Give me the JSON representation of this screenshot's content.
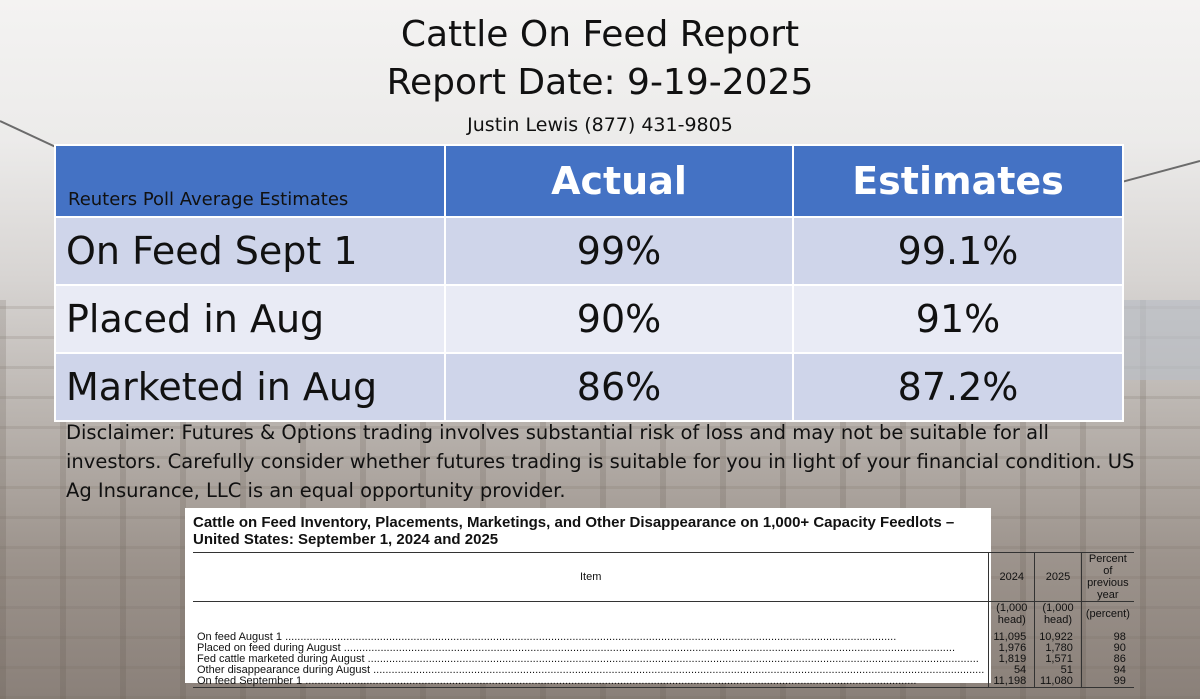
{
  "header": {
    "title": "Cattle On Feed Report",
    "report_date": "Report Date: 9-19-2025",
    "contact": "Justin Lewis (877) 431-9805"
  },
  "poll_table": {
    "label": "Reuters Poll Average Estimates",
    "columns": [
      "Actual",
      "Estimates"
    ],
    "rows": [
      {
        "name": "On Feed Sept 1",
        "actual": "99%",
        "estimate": "99.1%"
      },
      {
        "name": "Placed in Aug",
        "actual": "90%",
        "estimate": "91%"
      },
      {
        "name": "Marketed in Aug",
        "actual": "86%",
        "estimate": "87.2%"
      }
    ]
  },
  "disclaimer": "Disclaimer:  Futures & Options trading involves substantial risk of loss and may not be suitable for all investors.  Carefully consider whether futures trading is suitable for you in light of your financial condition. US Ag Insurance, LLC is an equal opportunity provider.",
  "nass": {
    "title": "Cattle on Feed Inventory, Placements, Marketings, and Other Disappearance on 1,000+ Capacity Feedlots – United States: September 1, 2024 and 2025",
    "headers": [
      "Item",
      "2024",
      "2025",
      "Percent of previous year"
    ],
    "units": [
      "(1,000 head)",
      "(1,000 head)",
      "(percent)"
    ],
    "rows": [
      {
        "item": "On feed August 1",
        "y2024": "11,095",
        "y2025": "10,922",
        "pct": "98"
      },
      {
        "item": "Placed on feed during August",
        "y2024": "1,976",
        "y2025": "1,780",
        "pct": "90"
      },
      {
        "item": "Fed cattle marketed during August",
        "y2024": "1,819",
        "y2025": "1,571",
        "pct": "86"
      },
      {
        "item": "Other disappearance during August",
        "y2024": "54",
        "y2025": "51",
        "pct": "94"
      },
      {
        "item": "On feed September 1",
        "y2024": "11,198",
        "y2025": "11,080",
        "pct": "99"
      }
    ]
  }
}
